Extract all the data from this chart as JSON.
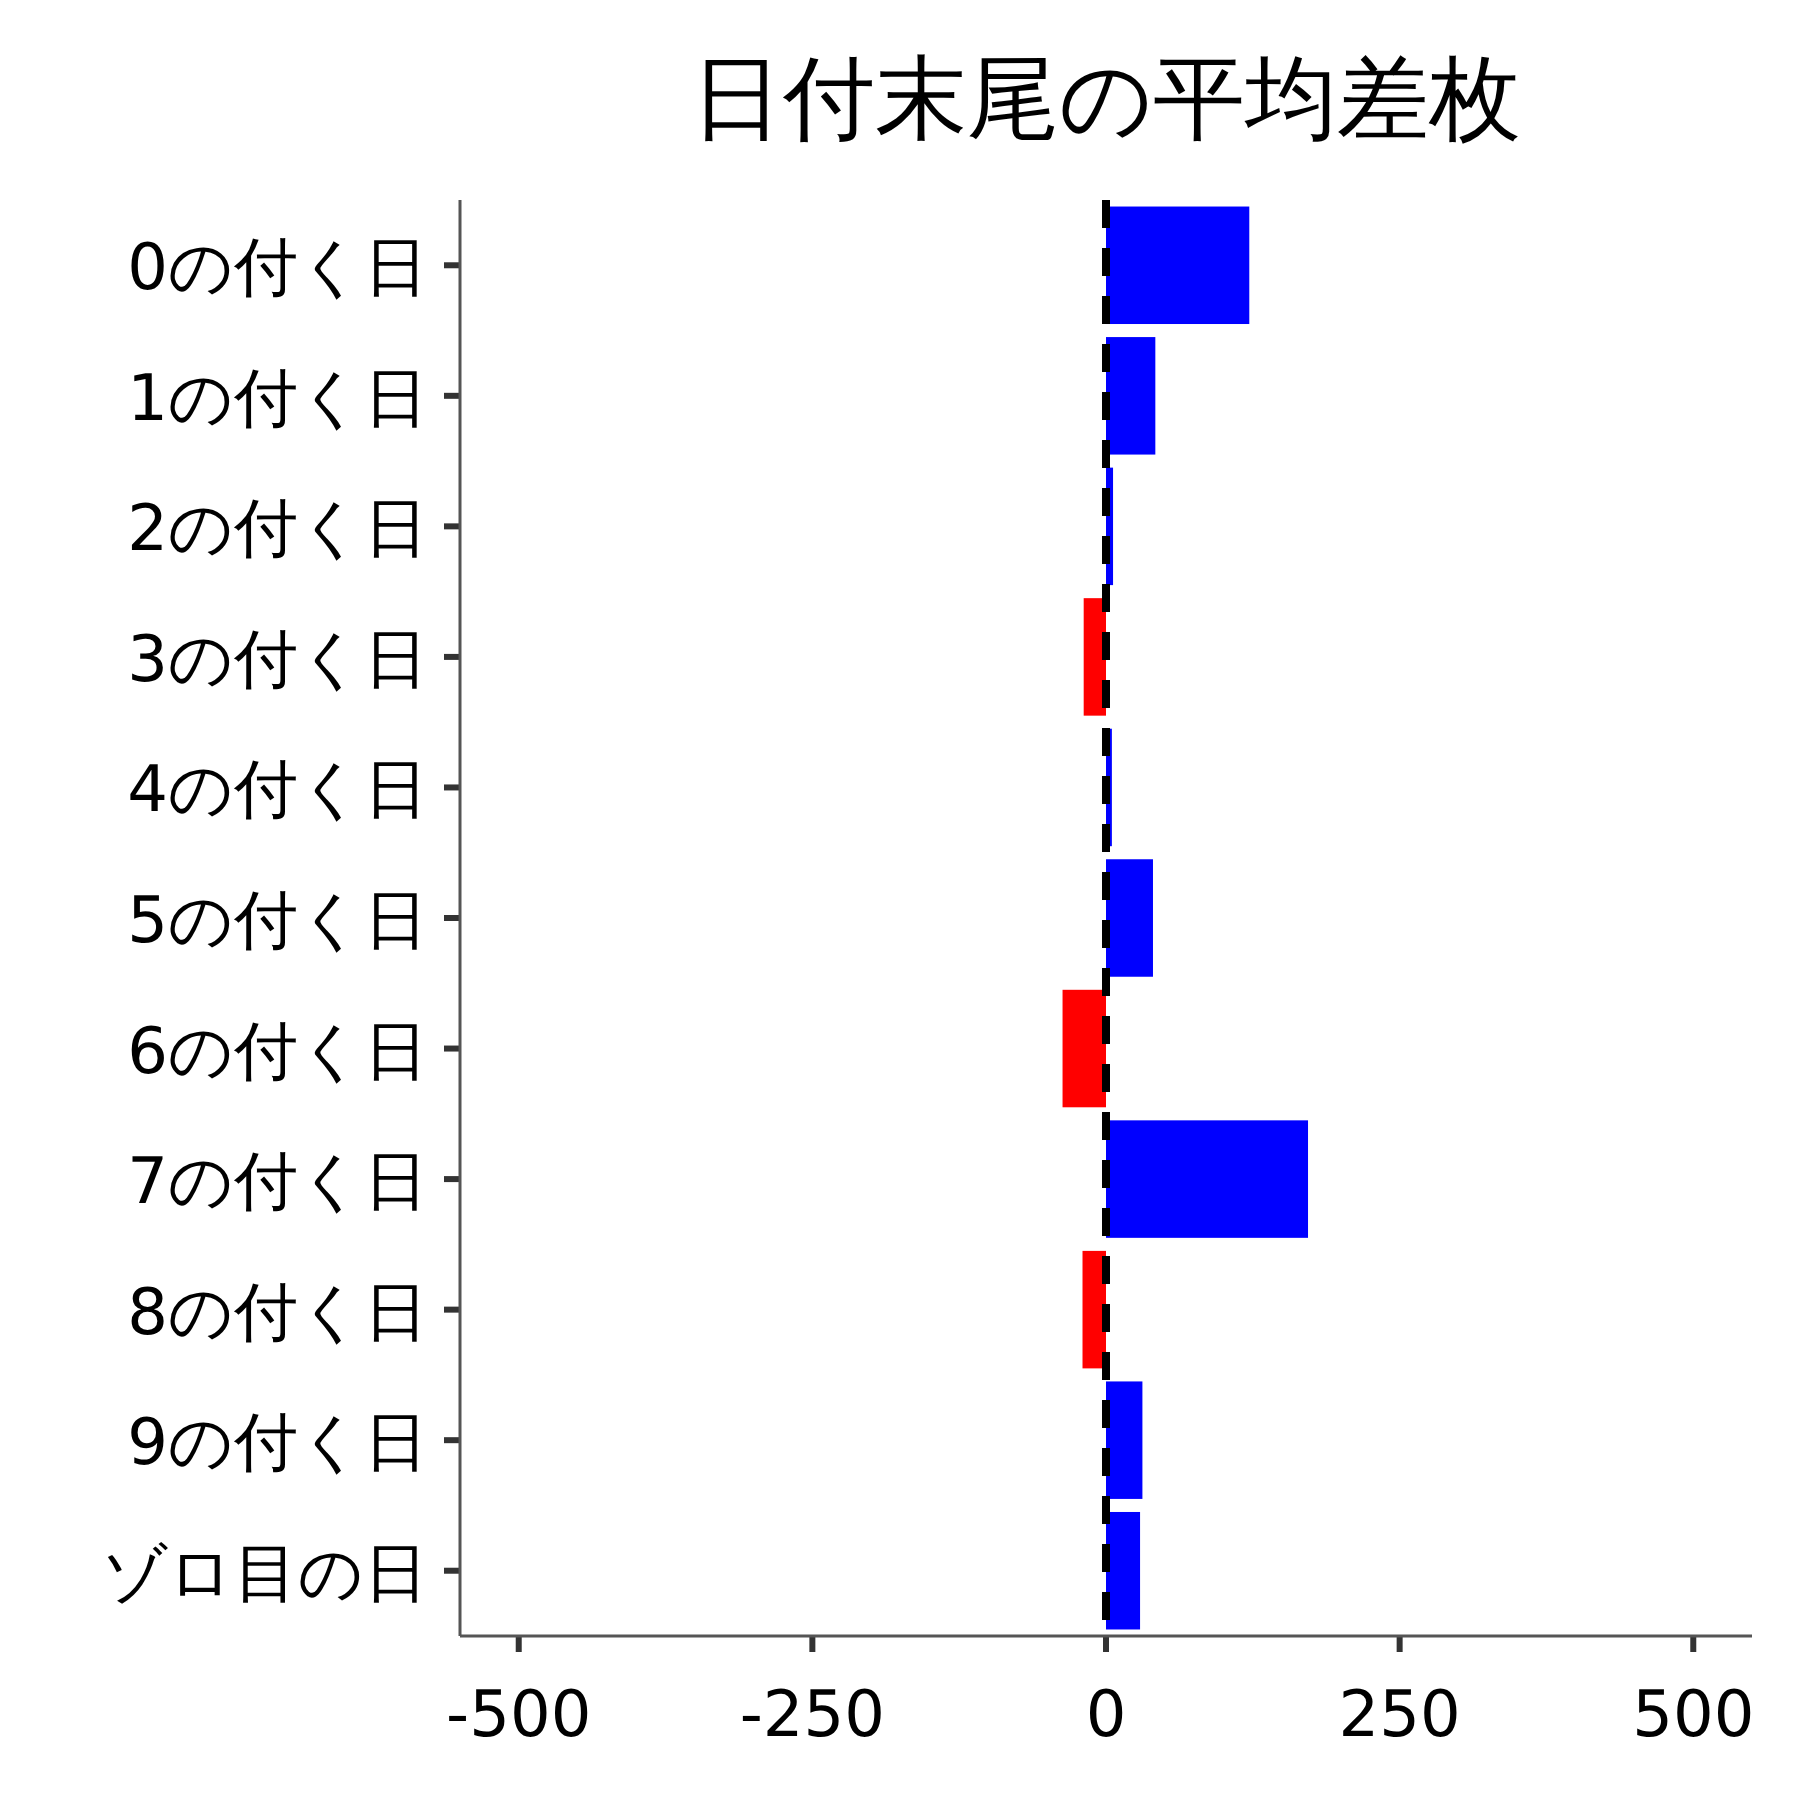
{
  "chart_data": {
    "type": "bar",
    "orientation": "horizontal",
    "title": "日付末尾の平均差枚",
    "categories": [
      "0の付く日",
      "1の付く日",
      "2の付く日",
      "3の付く日",
      "4の付く日",
      "5の付く日",
      "6の付く日",
      "7の付く日",
      "8の付く日",
      "9の付く日",
      "ゾロ目の日"
    ],
    "values": [
      122,
      42,
      6,
      -19,
      5,
      40,
      -37,
      172,
      -20,
      31,
      29
    ],
    "colors": [
      "#0000ff",
      "#0000ff",
      "#0000ff",
      "#ff0000",
      "#0000ff",
      "#0000ff",
      "#ff0000",
      "#0000ff",
      "#ff0000",
      "#0000ff",
      "#0000ff"
    ],
    "xlim": [
      -550,
      550
    ],
    "xticks": [
      -500,
      -250,
      0,
      250,
      500
    ],
    "ref_lines": [
      {
        "axis": "x",
        "value": 0,
        "color": "#000000",
        "line_style": "dashed"
      }
    ],
    "grid": false
  }
}
